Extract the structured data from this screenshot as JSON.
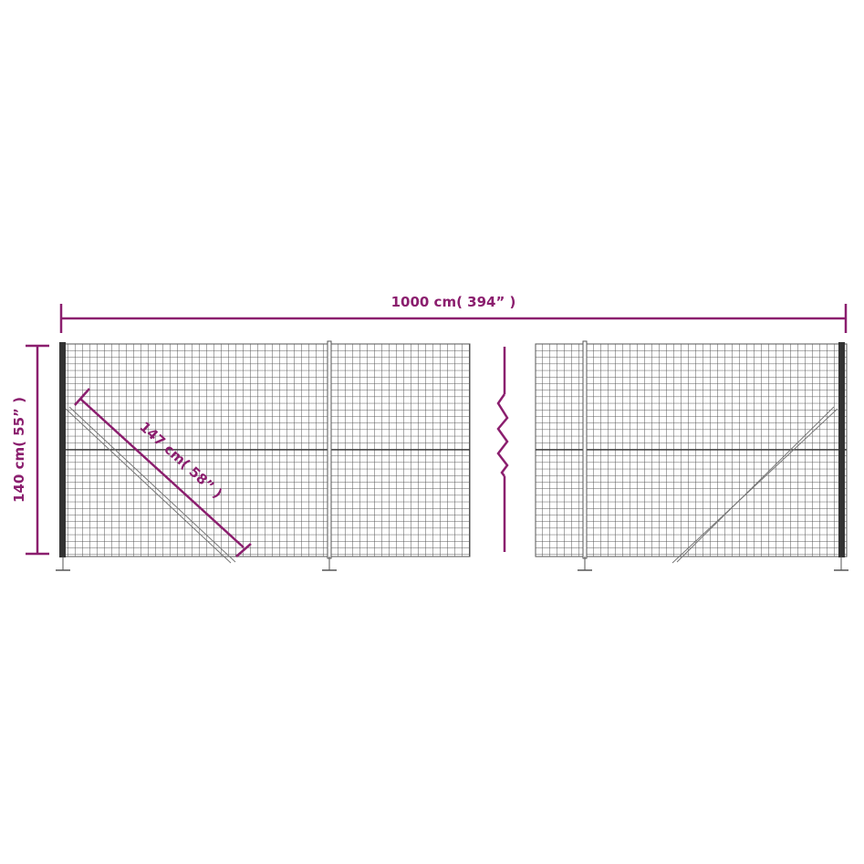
{
  "colors": {
    "dimension": "#8b1e6e",
    "mesh": "#444444",
    "background": "#ffffff"
  },
  "dimensions": {
    "length": "1000 cm( 394” )",
    "height": "140 cm( 55” )",
    "diagonal": "147 cm( 58” )"
  }
}
